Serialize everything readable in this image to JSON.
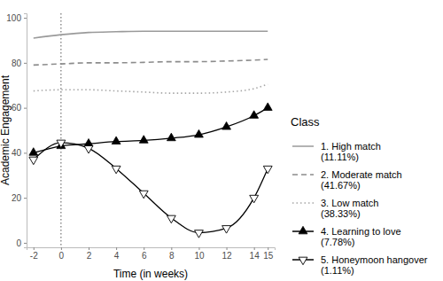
{
  "chart_data": {
    "type": "line",
    "x_label": "Time (in weeks)",
    "y_label": "Academic Engagement",
    "x": [
      -2,
      0,
      2,
      4,
      6,
      8,
      10,
      12,
      14,
      15
    ],
    "xlim": [
      -2.5,
      15.5
    ],
    "ylim": [
      -2,
      102
    ],
    "xticks": [
      -2,
      0,
      2,
      4,
      6,
      8,
      10,
      12,
      14,
      15
    ],
    "yticks": [
      0,
      20,
      40,
      60,
      80,
      100
    ],
    "grid": false,
    "legend": "right",
    "legend_title": "Class",
    "vline_x": 0,
    "series": [
      {
        "name": "1. High match (11.11%)",
        "color": "#9a9a9a",
        "line_style": "solid",
        "marker": "none",
        "values": [
          91,
          92.5,
          93.5,
          93.8,
          94,
          94,
          94,
          94,
          94,
          94
        ]
      },
      {
        "name": "2. Moderate match (41.67%)",
        "color": "#8c8c8c",
        "line_style": "dashed",
        "marker": "none",
        "values": [
          79,
          79.5,
          80,
          80,
          80.2,
          80.5,
          80.5,
          80.8,
          81.2,
          81.5
        ]
      },
      {
        "name": "3. Low match (38.33%)",
        "color": "#a6a6a6",
        "line_style": "dotted",
        "marker": "none",
        "values": [
          67.5,
          68,
          68,
          67.5,
          67,
          66.5,
          66.5,
          67,
          68.5,
          70.5
        ]
      },
      {
        "name": "4. Learning to love (7.78%)",
        "color": "#000000",
        "line_style": "solid",
        "marker": "triangle",
        "values": [
          40,
          43,
          44,
          45,
          45.5,
          46.5,
          48,
          51.5,
          56.5,
          60
        ]
      },
      {
        "name": "5. Honeymoon hangover (1.11%)",
        "color": "#000000",
        "line_style": "solid",
        "marker": "triangle-down-open",
        "values": [
          37,
          44.5,
          42,
          33,
          22,
          11,
          4.5,
          6.5,
          20,
          33
        ]
      }
    ]
  }
}
